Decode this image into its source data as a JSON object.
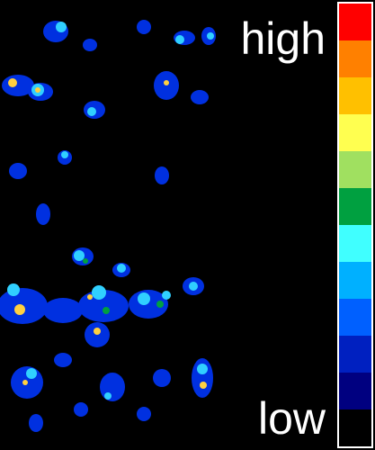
{
  "colorbar": {
    "high_label": "high",
    "low_label": "low"
  }
}
